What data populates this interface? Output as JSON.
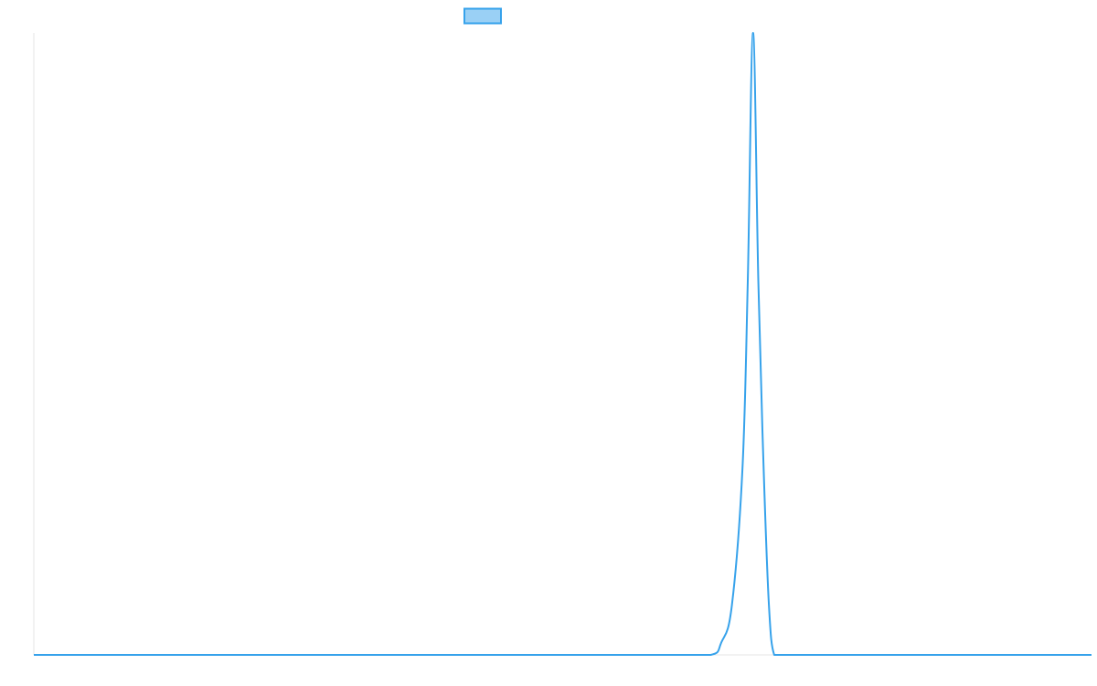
{
  "chart_data": {
    "type": "line",
    "title": "",
    "xlabel": "",
    "ylabel": "",
    "x": [
      0,
      10,
      20,
      30,
      40,
      50,
      60,
      64,
      65,
      66,
      67,
      67.5,
      68,
      68.5,
      69,
      69.5,
      70,
      71,
      72,
      73,
      80,
      90,
      100
    ],
    "series": [
      {
        "values": [
          0,
          0,
          0,
          0,
          0,
          0,
          0,
          0,
          2,
          8,
          30,
          60,
          100,
          60,
          30,
          8,
          0,
          0,
          0,
          0,
          0,
          0,
          0
        ],
        "color": "#36a2eb",
        "fill_color": "#9ad0f5"
      }
    ],
    "xlim": [
      0,
      100
    ],
    "ylim": [
      0,
      100
    ],
    "grid": false,
    "legend": "top-center"
  }
}
